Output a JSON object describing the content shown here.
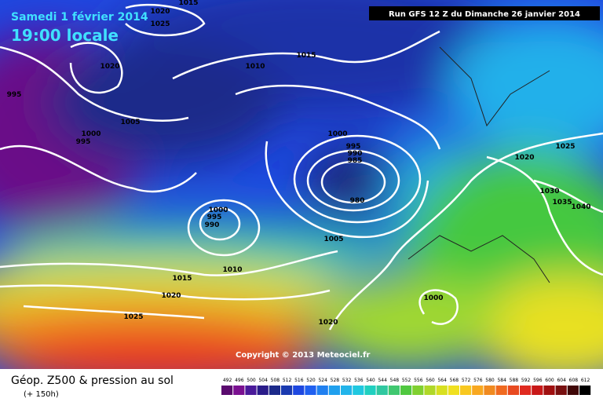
{
  "header": {
    "date": "Samedi 1 février 2014",
    "time": "19:00 locale",
    "run": "Run GFS 12 Z du Dimanche 26 janvier 2014"
  },
  "copyright": "Copyright © 2013 Meteociel.fr",
  "footer": {
    "title": "Géop. Z500 & pression au sol",
    "subtitle": "(+ 150h)"
  },
  "legend": {
    "ticks": [
      492,
      496,
      500,
      504,
      508,
      512,
      516,
      520,
      524,
      528,
      532,
      536,
      540,
      544,
      548,
      552,
      556,
      560,
      564,
      568,
      572,
      576,
      580,
      584,
      588,
      592,
      596,
      600,
      604,
      608,
      612
    ]
  },
  "isobar_labels": [
    1020,
    1025,
    1015,
    1015,
    1010,
    1020,
    995,
    1005,
    1000,
    995,
    1000,
    995,
    990,
    985,
    980,
    1000,
    995,
    990,
    1005,
    1010,
    1015,
    1020,
    1025,
    1020,
    1000,
    1020,
    1025,
    1030,
    1035,
    1040
  ]
}
